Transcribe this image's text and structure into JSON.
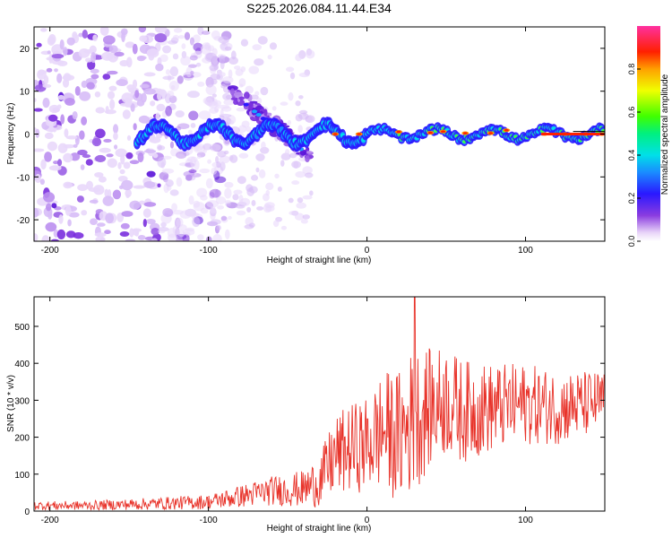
{
  "title": "S225.2026.084.11.44.E34",
  "chart_data": [
    {
      "type": "heatmap",
      "xlabel": "Height of straight line (km)",
      "ylabel": "Frequency (Hz)",
      "xlim": [
        -210,
        150
      ],
      "ylim": [
        -25,
        25
      ],
      "xticks": [
        -200,
        -100,
        0,
        100
      ],
      "yticks": [
        -20,
        -10,
        0,
        10,
        20
      ],
      "colorbar": {
        "label": "Normalized spectral amplitude",
        "range": [
          0,
          1
        ],
        "ticks": [
          0.0,
          0.2,
          0.4,
          0.6,
          0.8
        ],
        "tick_labels": [
          "0.0",
          "0.2",
          "0.4",
          "0.6",
          "0.8"
        ]
      },
      "features": [
        {
          "name": "diffuse noise",
          "x_range": [
            -210,
            -100
          ],
          "freq_range": [
            -25,
            25
          ],
          "amplitude": 0.15
        },
        {
          "name": "descending branch",
          "x_range": [
            -85,
            -35
          ],
          "freq_range": [
            -5,
            10
          ],
          "amplitude": 0.35
        },
        {
          "name": "central band",
          "x_range": [
            -145,
            150
          ],
          "freq": 0,
          "amplitude": [
            0.2,
            0.8
          ]
        }
      ]
    },
    {
      "type": "line",
      "xlabel": "Height of straight line (km)",
      "ylabel": "SNR (10 * v/v)",
      "xlim": [
        -210,
        150
      ],
      "ylim": [
        0,
        580
      ],
      "xticks": [
        -200,
        -100,
        0,
        100
      ],
      "yticks": [
        0,
        100,
        200,
        300,
        400,
        500
      ],
      "color": "#e8332a",
      "envelope": {
        "x": [
          -210,
          -180,
          -150,
          -120,
          -100,
          -80,
          -60,
          -40,
          -30,
          -20,
          -10,
          0,
          10,
          20,
          30,
          40,
          50,
          60,
          80,
          100,
          120,
          140,
          150
        ],
        "mean": [
          15,
          15,
          18,
          22,
          25,
          40,
          55,
          60,
          80,
          150,
          170,
          180,
          220,
          200,
          250,
          280,
          300,
          270,
          280,
          290,
          280,
          290,
          300
        ],
        "amplitude": [
          12,
          12,
          15,
          18,
          20,
          30,
          40,
          50,
          70,
          110,
          120,
          130,
          160,
          180,
          200,
          160,
          150,
          140,
          120,
          110,
          100,
          90,
          80
        ]
      },
      "peak": {
        "x": 30,
        "y": 580
      }
    }
  ]
}
